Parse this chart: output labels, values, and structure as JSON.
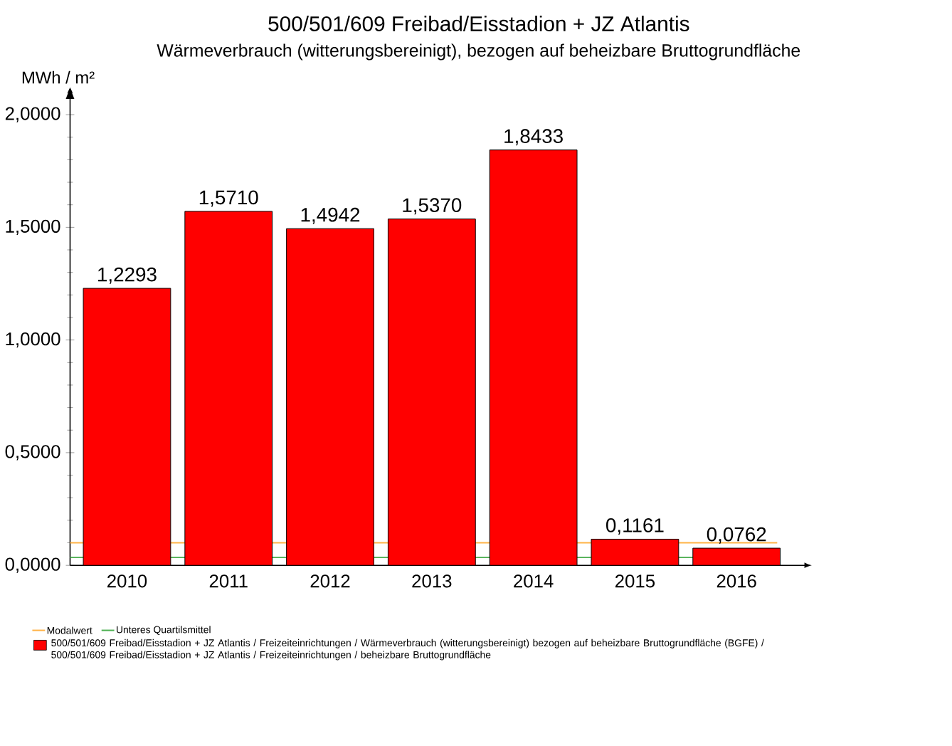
{
  "chart_data": {
    "type": "bar",
    "title": "500/501/609 Freibad/Eisstadion + JZ Atlantis",
    "subtitle": "Wärmeverbrauch (witterungsbereinigt), bezogen auf beheizbare Bruttogrundfläche",
    "ylabel": "MWh / m²",
    "categories": [
      "2010",
      "2011",
      "2012",
      "2013",
      "2014",
      "2015",
      "2016"
    ],
    "series": [
      {
        "name": "500/501/609 Freibad/Eisstadion + JZ Atlantis / Freizeiteinrichtungen / Wärmeverbrauch (witterungsbereinigt) bezogen auf beheizbare Bruttogrundfläche (BGFE) / 500/501/609 Freibad/Eisstadion + JZ Atlantis / Freizeiteinrichtungen / beheizbare Bruttogrundfläche",
        "color": "#ff0000",
        "values": [
          1.2293,
          1.571,
          1.4942,
          1.537,
          1.8433,
          0.1161,
          0.0762
        ],
        "value_labels": [
          "1,2293",
          "1,5710",
          "1,4942",
          "1,5370",
          "1,8433",
          "0,1161",
          "0,0762"
        ]
      }
    ],
    "ylim": [
      0,
      2.12
    ],
    "yticks": [
      {
        "value": 0,
        "label": "0,0000"
      },
      {
        "value": 0.5,
        "label": "0,5000"
      },
      {
        "value": 1,
        "label": "1,0000"
      },
      {
        "value": 1.5,
        "label": "1,5000"
      },
      {
        "value": 2,
        "label": "2,0000"
      }
    ],
    "ref_lines": [
      {
        "axis": "y",
        "value": 0.1,
        "label": "Modalwert",
        "color": "#ffb347"
      },
      {
        "axis": "y",
        "value": 0.035,
        "label": "Unteres Quartilsmittel",
        "color": "#4caf50"
      }
    ],
    "legend": "bottom"
  }
}
